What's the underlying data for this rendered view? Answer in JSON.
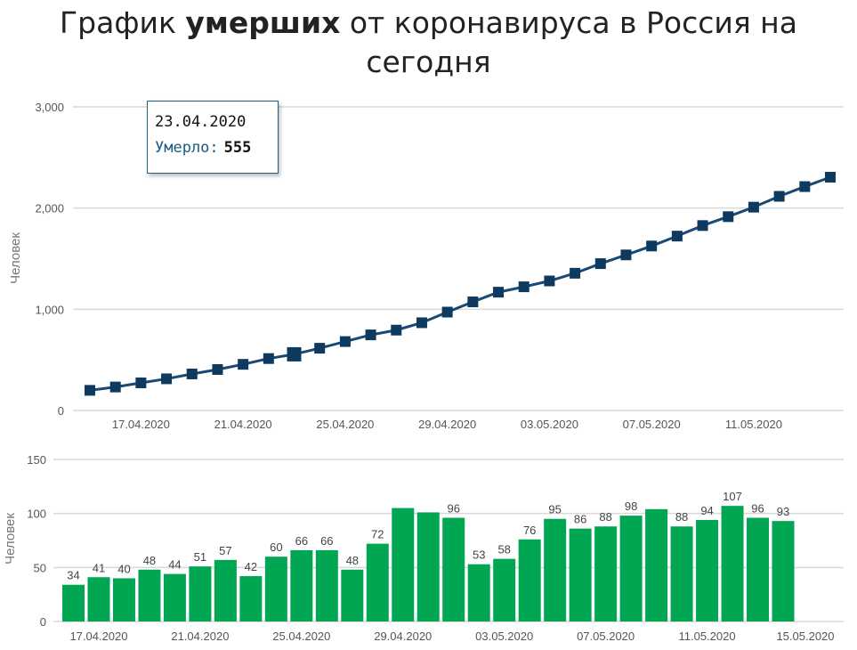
{
  "title": {
    "prefix": "График ",
    "bold": "умерших",
    "suffix": " от коронавируса в Россия на сегодня"
  },
  "tooltip": {
    "date": "23.04.2020",
    "label": "Умерло:",
    "value": "555"
  },
  "colors": {
    "line": "#1a4a73",
    "marker": "#0d3a5e",
    "bar": "#00a651",
    "grid": "#d9d9d9"
  },
  "chart_data": [
    {
      "type": "line",
      "ylabel": "Человек",
      "ylim": [
        0,
        3000
      ],
      "yticks": [
        "0",
        "1,000",
        "2,000",
        "3,000"
      ],
      "xticks": [
        "17.04.2020",
        "21.04.2020",
        "25.04.2020",
        "29.04.2020",
        "03.05.2020",
        "07.05.2020",
        "11.05.2020"
      ],
      "x": [
        "15.04.2020",
        "16.04.2020",
        "17.04.2020",
        "18.04.2020",
        "19.04.2020",
        "20.04.2020",
        "21.04.2020",
        "22.04.2020",
        "23.04.2020",
        "24.04.2020",
        "25.04.2020",
        "26.04.2020",
        "27.04.2020",
        "28.04.2020",
        "29.04.2020",
        "30.04.2020",
        "01.05.2020",
        "02.05.2020",
        "03.05.2020",
        "04.05.2020",
        "05.05.2020",
        "06.05.2020",
        "07.05.2020",
        "08.05.2020",
        "09.05.2020",
        "10.05.2020",
        "11.05.2020",
        "12.05.2020",
        "13.05.2020",
        "14.05.2020"
      ],
      "values": [
        199,
        232,
        273,
        313,
        361,
        405,
        456,
        513,
        555,
        615,
        681,
        747,
        794,
        867,
        972,
        1073,
        1169,
        1222,
        1280,
        1356,
        1451,
        1537,
        1625,
        1723,
        1827,
        1915,
        2009,
        2116,
        2212,
        2305
      ],
      "highlight_index": 8
    },
    {
      "type": "bar",
      "ylabel": "Человек",
      "ylim": [
        0,
        150
      ],
      "yticks": [
        "0",
        "50",
        "100",
        "150"
      ],
      "xticks": [
        "17.04.2020",
        "21.04.2020",
        "25.04.2020",
        "29.04.2020",
        "03.05.2020",
        "07.05.2020",
        "11.05.2020",
        "15.05.2020"
      ],
      "values": [
        34,
        41,
        40,
        48,
        44,
        51,
        57,
        42,
        60,
        66,
        66,
        48,
        72,
        105,
        101,
        96,
        53,
        58,
        76,
        95,
        86,
        88,
        98,
        104,
        88,
        94,
        107,
        96,
        93
      ],
      "labels": [
        "34",
        "41",
        "40",
        "48",
        "44",
        "51",
        "57",
        "42",
        "60",
        "66",
        "66",
        "48",
        "72",
        "",
        "",
        "96",
        "53",
        "58",
        "76",
        "95",
        "86",
        "88",
        "98",
        "",
        "88",
        "94",
        "107",
        "96",
        "93"
      ]
    }
  ]
}
